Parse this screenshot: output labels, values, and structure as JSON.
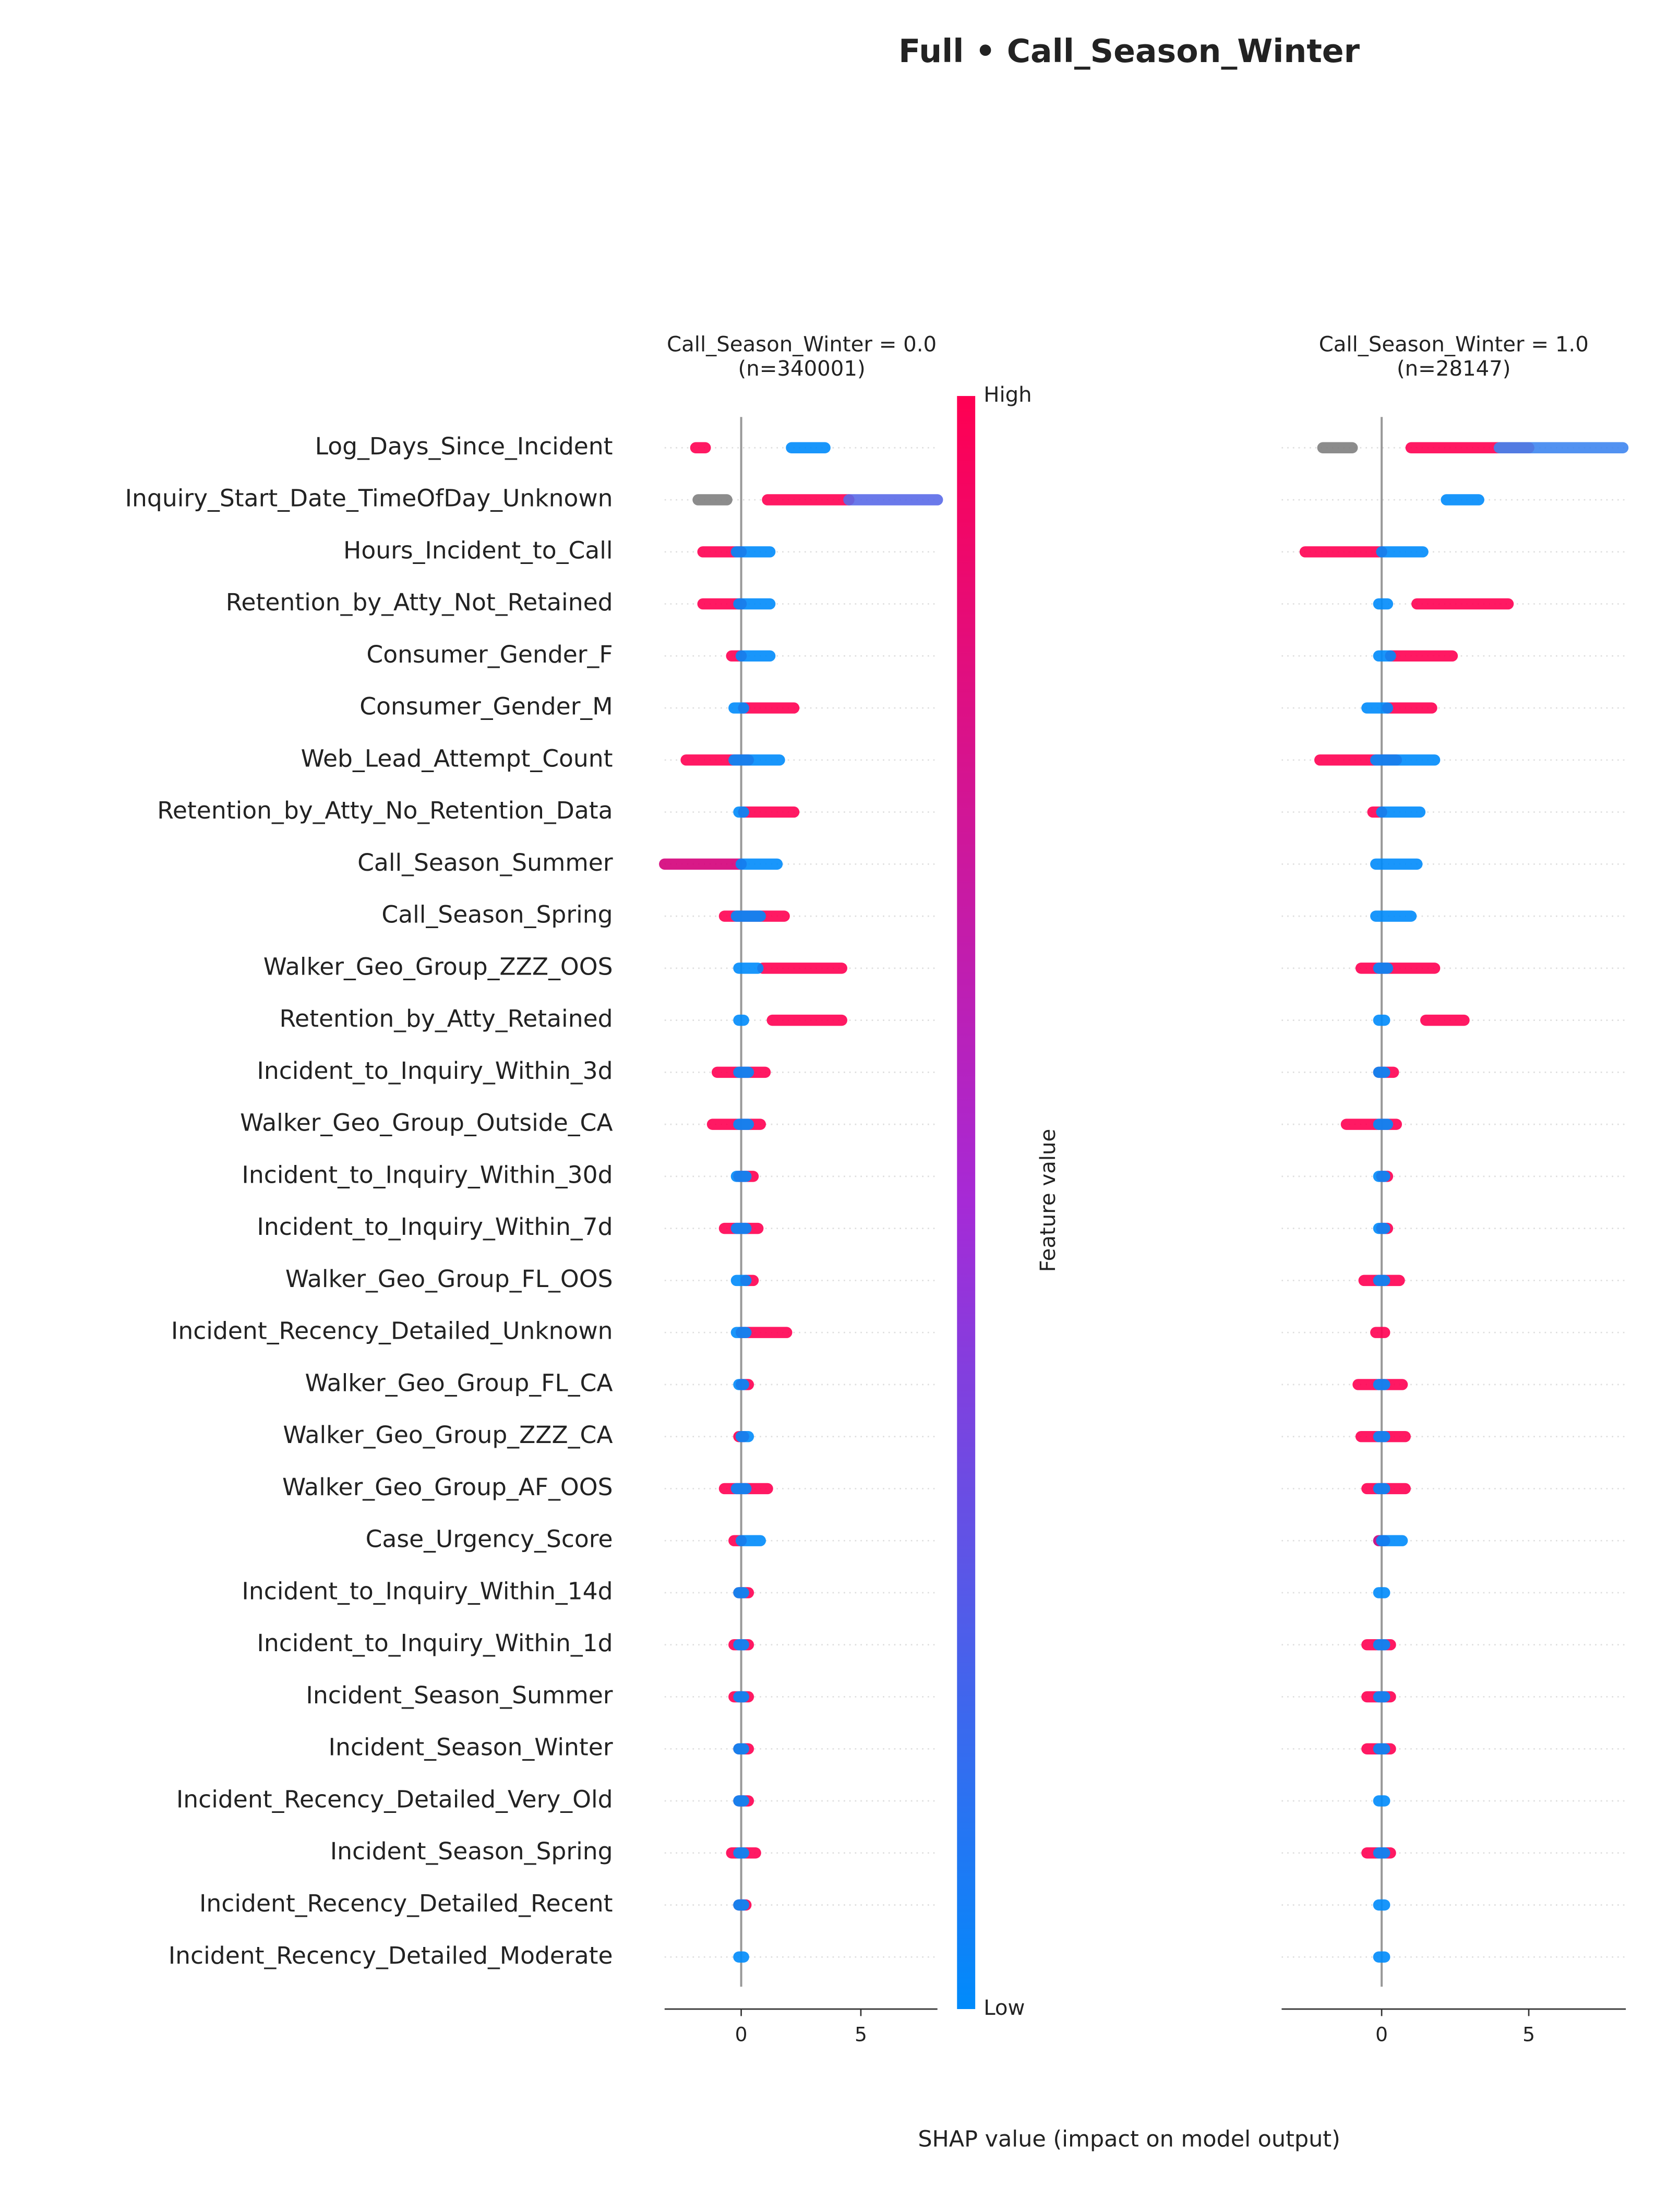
{
  "chart_data": {
    "type": "beeswarm",
    "title": "Full • Call_Season_Winter",
    "xlabel": "SHAP value (impact on model output)",
    "colorbar": {
      "label": "Feature value",
      "high": "High",
      "low": "Low",
      "high_color": "#ff0052",
      "low_color": "#008bfb"
    },
    "features": [
      "Log_Days_Since_Incident",
      "Inquiry_Start_Date_TimeOfDay_Unknown",
      "Hours_Incident_to_Call",
      "Retention_by_Atty_Not_Retained",
      "Consumer_Gender_F",
      "Consumer_Gender_M",
      "Web_Lead_Attempt_Count",
      "Retention_by_Atty_No_Retention_Data",
      "Call_Season_Summer",
      "Call_Season_Spring",
      "Walker_Geo_Group_ZZZ_OOS",
      "Retention_by_Atty_Retained",
      "Incident_to_Inquiry_Within_3d",
      "Walker_Geo_Group_Outside_CA",
      "Incident_to_Inquiry_Within_30d",
      "Incident_to_Inquiry_Within_7d",
      "Walker_Geo_Group_FL_OOS",
      "Incident_Recency_Detailed_Unknown",
      "Walker_Geo_Group_FL_CA",
      "Walker_Geo_Group_ZZZ_CA",
      "Walker_Geo_Group_AF_OOS",
      "Case_Urgency_Score",
      "Incident_to_Inquiry_Within_14d",
      "Incident_to_Inquiry_Within_1d",
      "Incident_Season_Summer",
      "Incident_Season_Winter",
      "Incident_Recency_Detailed_Very_Old",
      "Incident_Season_Spring",
      "Incident_Recency_Detailed_Recent",
      "Incident_Recency_Detailed_Moderate"
    ],
    "panels": [
      {
        "title": "Call_Season_Winter = 0.0\n(n=340001)",
        "xlim": [
          -3.2,
          8.2
        ],
        "xticks": [
          0,
          5
        ],
        "segments": [
          [
            [
              -1.9,
              -1.5,
              "#ff0052"
            ],
            [
              2.1,
              3.5,
              "#008bfb"
            ]
          ],
          [
            [
              -1.8,
              -0.6,
              "#808080"
            ],
            [
              1.1,
              4.5,
              "#ff0052"
            ],
            [
              4.5,
              8.2,
              "#5a6ae8"
            ]
          ],
          [
            [
              -1.6,
              0,
              "#ff0052"
            ],
            [
              -0.2,
              1.2,
              "#008bfb"
            ]
          ],
          [
            [
              -1.6,
              0,
              "#ff0052"
            ],
            [
              -0.1,
              1.2,
              "#008bfb"
            ]
          ],
          [
            [
              -0.4,
              0,
              "#ff0052"
            ],
            [
              0,
              1.2,
              "#008bfb"
            ]
          ],
          [
            [
              0.1,
              2.2,
              "#ff0052"
            ],
            [
              -0.3,
              0.1,
              "#008bfb"
            ]
          ],
          [
            [
              -2.3,
              0.3,
              "#ff0052"
            ],
            [
              -0.3,
              1.6,
              "#008bfb"
            ]
          ],
          [
            [
              0.1,
              2.2,
              "#ff0052"
            ],
            [
              -0.1,
              0.1,
              "#008bfb"
            ]
          ],
          [
            [
              -3.2,
              0,
              "#d4007a"
            ],
            [
              0,
              1.5,
              "#008bfb"
            ]
          ],
          [
            [
              -0.7,
              1.8,
              "#ff0052"
            ],
            [
              -0.2,
              0.8,
              "#008bfb"
            ]
          ],
          [
            [
              0.9,
              4.2,
              "#ff0052"
            ],
            [
              -0.1,
              0.7,
              "#008bfb"
            ]
          ],
          [
            [
              1.3,
              4.2,
              "#ff0052"
            ],
            [
              -0.1,
              0.1,
              "#008bfb"
            ]
          ],
          [
            [
              -1,
              1,
              "#ff0052"
            ],
            [
              -0.1,
              0.3,
              "#008bfb"
            ]
          ],
          [
            [
              -1.2,
              0.8,
              "#ff0052"
            ],
            [
              -0.1,
              0.3,
              "#008bfb"
            ]
          ],
          [
            [
              -0.1,
              0.5,
              "#ff0052"
            ],
            [
              -0.2,
              0.2,
              "#008bfb"
            ]
          ],
          [
            [
              -0.7,
              0.7,
              "#ff0052"
            ],
            [
              -0.2,
              0.2,
              "#008bfb"
            ]
          ],
          [
            [
              0.2,
              0.5,
              "#ff0052"
            ],
            [
              -0.2,
              0.2,
              "#008bfb"
            ]
          ],
          [
            [
              0,
              1.9,
              "#ff0052"
            ],
            [
              -0.2,
              0.2,
              "#008bfb"
            ]
          ],
          [
            [
              0,
              0.3,
              "#ff0052"
            ],
            [
              -0.1,
              0.1,
              "#008bfb"
            ]
          ],
          [
            [
              -0.1,
              0.1,
              "#ff0052"
            ],
            [
              0,
              0.3,
              "#008bfb"
            ]
          ],
          [
            [
              -0.7,
              1.1,
              "#ff0052"
            ],
            [
              -0.2,
              0.2,
              "#008bfb"
            ]
          ],
          [
            [
              -0.3,
              0,
              "#ff0052"
            ],
            [
              0,
              0.8,
              "#008bfb"
            ]
          ],
          [
            [
              -0.1,
              0.3,
              "#ff0052"
            ],
            [
              -0.1,
              0.1,
              "#008bfb"
            ]
          ],
          [
            [
              -0.3,
              0.3,
              "#ff0052"
            ],
            [
              -0.1,
              0.1,
              "#008bfb"
            ]
          ],
          [
            [
              -0.3,
              0.3,
              "#ff0052"
            ],
            [
              -0.1,
              0.1,
              "#008bfb"
            ]
          ],
          [
            [
              -0.1,
              0.3,
              "#ff0052"
            ],
            [
              -0.1,
              0.1,
              "#008bfb"
            ]
          ],
          [
            [
              -0.1,
              0.3,
              "#ff0052"
            ],
            [
              -0.1,
              0.1,
              "#008bfb"
            ]
          ],
          [
            [
              -0.4,
              0.6,
              "#ff0052"
            ],
            [
              -0.1,
              0.1,
              "#008bfb"
            ]
          ],
          [
            [
              -0.1,
              0.2,
              "#ff0052"
            ],
            [
              -0.1,
              0.1,
              "#008bfb"
            ]
          ],
          [
            [
              -0.1,
              0.1,
              "#008bfb"
            ]
          ]
        ]
      },
      {
        "title": "Call_Season_Winter = 1.0\n(n=28147)",
        "xlim": [
          -3.4,
          8.3
        ],
        "xticks": [
          0,
          5
        ],
        "segments": [
          [
            [
              -2,
              -1,
              "#808080"
            ],
            [
              1,
              5,
              "#ff0052"
            ],
            [
              4,
              8.2,
              "#3f86f0"
            ]
          ],
          [
            [
              2.2,
              3.3,
              "#008bfb"
            ]
          ],
          [
            [
              -2.6,
              0,
              "#ff0052"
            ],
            [
              0,
              1.4,
              "#008bfb"
            ]
          ],
          [
            [
              1.2,
              4.3,
              "#ff0052"
            ],
            [
              -0.1,
              0.2,
              "#008bfb"
            ]
          ],
          [
            [
              0.3,
              2.4,
              "#ff0052"
            ],
            [
              -0.1,
              0.3,
              "#008bfb"
            ]
          ],
          [
            [
              0.2,
              1.7,
              "#ff0052"
            ],
            [
              -0.5,
              0.2,
              "#008bfb"
            ]
          ],
          [
            [
              -2.1,
              0.5,
              "#ff0052"
            ],
            [
              -0.2,
              1.8,
              "#008bfb"
            ]
          ],
          [
            [
              -0.3,
              0,
              "#ff0052"
            ],
            [
              0,
              1.3,
              "#008bfb"
            ]
          ],
          [
            [
              -0.2,
              1.2,
              "#008bfb"
            ]
          ],
          [
            [
              -0.2,
              1,
              "#008bfb"
            ]
          ],
          [
            [
              -0.7,
              1.8,
              "#ff0052"
            ],
            [
              -0.1,
              0.2,
              "#008bfb"
            ]
          ],
          [
            [
              1.5,
              2.8,
              "#ff0052"
            ],
            [
              -0.1,
              0.1,
              "#008bfb"
            ]
          ],
          [
            [
              -0.1,
              0.4,
              "#ff0052"
            ],
            [
              -0.1,
              0.1,
              "#008bfb"
            ]
          ],
          [
            [
              -1.2,
              0.5,
              "#ff0052"
            ],
            [
              -0.1,
              0.2,
              "#008bfb"
            ]
          ],
          [
            [
              0,
              0.2,
              "#ff0052"
            ],
            [
              -0.1,
              0.1,
              "#008bfb"
            ]
          ],
          [
            [
              0,
              0.2,
              "#ff0052"
            ],
            [
              -0.1,
              0.1,
              "#008bfb"
            ]
          ],
          [
            [
              -0.6,
              0.6,
              "#ff0052"
            ],
            [
              -0.1,
              0.1,
              "#008bfb"
            ]
          ],
          [
            [
              -0.2,
              0.1,
              "#ff0052"
            ]
          ],
          [
            [
              -0.8,
              0.7,
              "#ff0052"
            ],
            [
              -0.1,
              0.1,
              "#008bfb"
            ]
          ],
          [
            [
              -0.7,
              0.8,
              "#ff0052"
            ],
            [
              -0.1,
              0.1,
              "#008bfb"
            ]
          ],
          [
            [
              -0.5,
              0.8,
              "#ff0052"
            ],
            [
              -0.1,
              0.1,
              "#008bfb"
            ]
          ],
          [
            [
              -0.1,
              0.1,
              "#c0007f"
            ],
            [
              0,
              0.7,
              "#008bfb"
            ]
          ],
          [
            [
              -0.1,
              0.1,
              "#008bfb"
            ]
          ],
          [
            [
              -0.5,
              0.3,
              "#ff0052"
            ],
            [
              -0.1,
              0.1,
              "#008bfb"
            ]
          ],
          [
            [
              -0.5,
              0.3,
              "#ff0052"
            ],
            [
              -0.1,
              0.1,
              "#008bfb"
            ]
          ],
          [
            [
              -0.5,
              0.3,
              "#ff0052"
            ],
            [
              -0.1,
              0.1,
              "#008bfb"
            ]
          ],
          [
            [
              -0.1,
              0.1,
              "#008bfb"
            ]
          ],
          [
            [
              -0.5,
              0.3,
              "#ff0052"
            ],
            [
              -0.1,
              0.1,
              "#008bfb"
            ]
          ],
          [
            [
              -0.1,
              0.1,
              "#008bfb"
            ]
          ],
          [
            [
              -0.1,
              0.1,
              "#008bfb"
            ]
          ]
        ]
      }
    ]
  }
}
